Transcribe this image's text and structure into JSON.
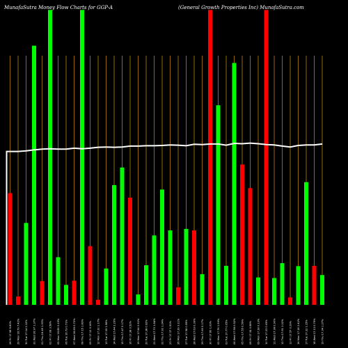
{
  "header": {
    "left_title": "MunafaSutra Money Flow Charts for GGP-A",
    "right_title": "(General Growth Properties Inc) MunafaSutra.com"
  },
  "chart_data": {
    "type": "bar",
    "title": "MunafaSutra Money Flow Charts for GGP-A",
    "subtitle": "(General Growth Properties Inc) MunafaSutra.com",
    "categories": [
      "26 Fri 17.98 6.83%",
      "29 Mon 16.79 7.42%",
      "30 Tue 17.14 2.12%",
      "31 Wed 16.97 1.37%",
      "01 Thu 16.49 1.93%",
      "02 Fri 17.08 3.58%",
      "05 Mon 16.85 0.25%",
      "06 Tue 16.73 0.71%",
      "07 Wed 16.85 0.72%",
      "08 Thu 17.15 1.83%",
      "09 Fri 17.12 0.16%",
      "12 Mon 17.32 1.17%",
      "13 Tue 17.05 1.56%",
      "14 Wed 17.44 2.29%",
      "15 Thu 17.47 0.17%",
      "16 Fri 17.38 0.52%",
      "19 Mon 17.54 0.92%",
      "20 Tue 17.38 0.92%",
      "21 Wed 17.70 1.84%",
      "22 Thu 17.92 1.24%",
      "23 Fri 17.37 1.51%",
      "26 Mon 17.39 3.11%",
      "27 Tue 17.56 0.95%",
      "28 Wed 17.63 0.39%",
      "29 Thu 17.60 0.17%",
      "30 Fri 17.60 1.03%",
      "02 Mon 17.76 1.99%",
      "03 Tue 17.77 0.05%",
      "04 Wed 17.58 0.52%",
      "05 Thu 17.55 0.59%",
      "06 Fri 17.34 0.58%",
      "09 Mon 17.18 0.13%",
      "10 Tue 17.23 0.05%",
      "11 Wed 17.38 0.90%",
      "12 Thu 17.61 1.22%",
      "13 Fri 17.57 0.29%",
      "16 Mon 17.18 2.42%",
      "17 Tue 17.32 1.15%",
      "18 Wed 17.13 0.79%",
      "19 Thu 17.34 1.27%"
    ],
    "colors": [
      "red",
      "red",
      "green",
      "green",
      "red",
      "green",
      "green",
      "green",
      "red",
      "green",
      "red",
      "red",
      "green",
      "green",
      "green",
      "red",
      "green",
      "green",
      "green",
      "green",
      "green",
      "red",
      "green",
      "red",
      "green",
      "red",
      "green",
      "green",
      "green",
      "red",
      "red",
      "green",
      "red",
      "green",
      "green",
      "red",
      "green",
      "green",
      "red",
      "green"
    ],
    "values": [
      37.5,
      2.8,
      27.5,
      87,
      8.0,
      99,
      16.0,
      6.7,
      8.1,
      99,
      19.7,
      1.7,
      12.2,
      40.2,
      46.1,
      36.0,
      3.5,
      13.3,
      23.3,
      38.7,
      25.0,
      5.9,
      25.5,
      25.0,
      10.3,
      99,
      67.0,
      13.1,
      81.2,
      47.1,
      39.2,
      9.2,
      99,
      9.0,
      14.0,
      2.5,
      13.0,
      41.2,
      13.1,
      10.0
    ],
    "line": [
      51.5,
      51.5,
      51.7,
      52.0,
      52.3,
      52.4,
      52.3,
      52.3,
      52.6,
      52.4,
      52.6,
      52.9,
      53.0,
      52.9,
      53.0,
      53.3,
      53.3,
      53.4,
      53.4,
      53.5,
      53.7,
      53.6,
      53.4,
      53.9,
      53.8,
      54.0,
      54.0,
      53.6,
      54.2,
      54.1,
      54.3,
      54.1,
      53.8,
      53.7,
      53.3,
      53.0,
      53.5,
      53.7,
      53.7,
      54.0
    ],
    "ylim": [
      0,
      100
    ],
    "grid": true,
    "bar_colors": {
      "green": "#00ff00",
      "red": "#ff0000",
      "grid": "#b8860b",
      "line": "#ffffff"
    }
  }
}
